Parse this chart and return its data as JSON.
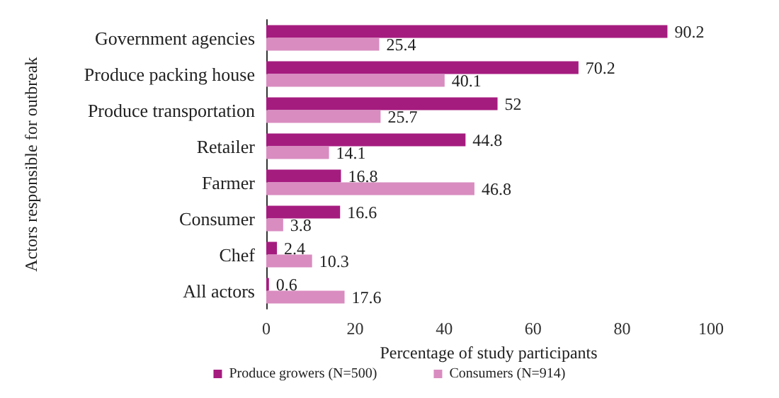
{
  "chart_data": {
    "type": "bar",
    "orientation": "horizontal",
    "xlabel": "Percentage of study participants",
    "ylabel": "Actors responsible for outbreak",
    "categories": [
      "Government agencies",
      "Produce packing house",
      "Produce transportation",
      "Retailer",
      "Farmer",
      "Consumer",
      "Chef",
      "All actors"
    ],
    "series": [
      {
        "name": "Produce growers (N=500)",
        "color": "#a51c7f",
        "values": [
          90.2,
          70.2,
          52,
          44.8,
          16.8,
          16.6,
          2.4,
          0.6
        ]
      },
      {
        "name": "Consumers (N=914)",
        "color": "#d98cc0",
        "values": [
          25.4,
          40.1,
          25.7,
          14.1,
          46.8,
          3.8,
          10.3,
          17.6
        ]
      }
    ],
    "xlim": [
      0,
      100
    ],
    "xticks": [
      0,
      20,
      40,
      60,
      80,
      100
    ],
    "data_labels": true,
    "grid": false,
    "legend": "bottom"
  }
}
